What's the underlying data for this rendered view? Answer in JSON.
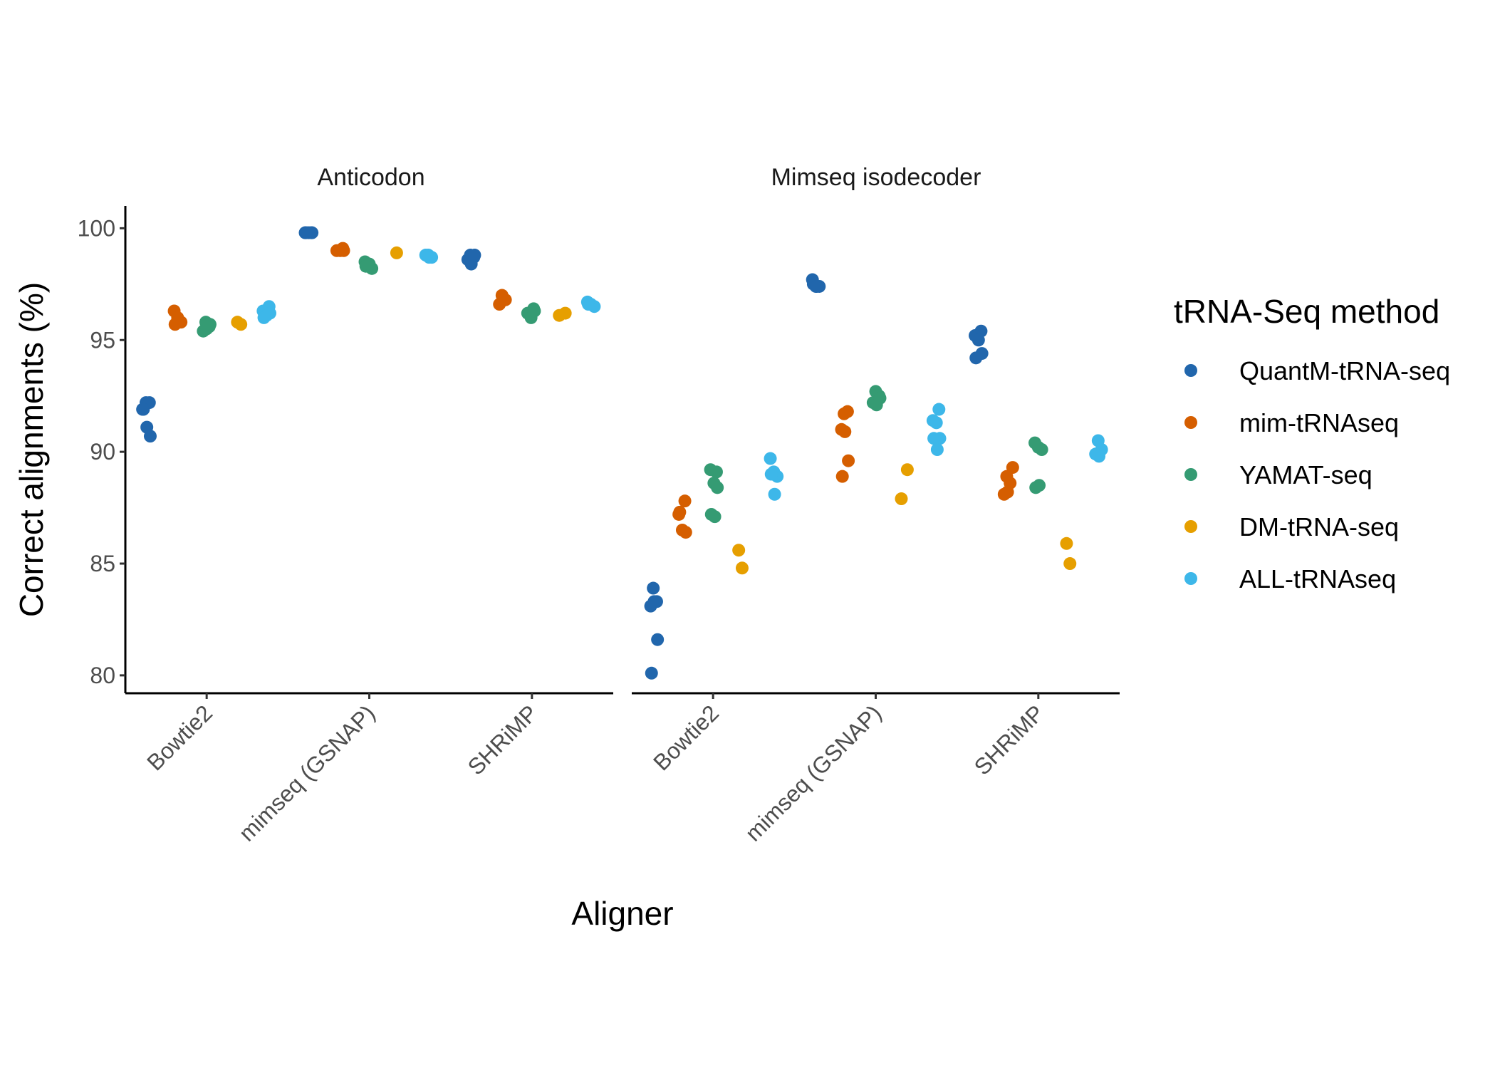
{
  "chart_data": {
    "type": "scatter",
    "xlabel": "Aligner",
    "ylabel": "Correct alignments (%)",
    "ylim": [
      79.2,
      101
    ],
    "yticks": [
      80,
      85,
      90,
      95,
      100
    ],
    "categories": [
      "Bowtie2",
      "mimseq (GSNAP)",
      "SHRiMP"
    ],
    "legend": {
      "title": "tRNA-Seq method",
      "placement": "right"
    },
    "series": [
      {
        "name": "QuantM-tRNA-seq",
        "color": "#2166ac"
      },
      {
        "name": "mim-tRNAseq",
        "color": "#d55e00"
      },
      {
        "name": "YAMAT-seq",
        "color": "#359b73"
      },
      {
        "name": "DM-tRNA-seq",
        "color": "#e69f00"
      },
      {
        "name": "ALL-tRNAseq",
        "color": "#3db7e9"
      }
    ],
    "panels": [
      {
        "title": "Anticodon",
        "points": {
          "Bowtie2": [
            [
              91.9,
              92.2,
              92.2,
              91.9,
              91.1,
              90.7
            ],
            [
              96.3,
              96.0,
              95.8,
              95.7,
              95.8
            ],
            [
              95.8,
              95.6,
              95.4,
              95.5,
              95.7
            ],
            [
              95.8,
              95.7
            ],
            [
              96.5,
              96.3,
              96.1,
              96.2,
              96.0
            ]
          ],
          "mimseq (GSNAP)": [
            [
              99.8,
              99.8,
              99.8,
              99.8,
              99.8
            ],
            [
              99.1,
              99.0,
              99.0,
              99.0
            ],
            [
              98.5,
              98.3,
              98.2,
              98.3,
              98.4
            ],
            [
              98.9
            ],
            [
              98.8,
              98.7,
              98.8,
              98.7
            ]
          ],
          "SHRiMP": [
            [
              98.8,
              98.7,
              98.6,
              98.4,
              98.8
            ],
            [
              97.0,
              96.8,
              96.6,
              96.9
            ],
            [
              96.4,
              96.2,
              96.0,
              96.3
            ],
            [
              96.2,
              96.1
            ],
            [
              96.7,
              96.6,
              96.5,
              96.6
            ]
          ]
        }
      },
      {
        "title": "Mimseq isodecoder",
        "points": {
          "Bowtie2": [
            [
              83.9,
              83.3,
              83.1,
              83.3,
              81.6,
              80.1
            ],
            [
              87.8,
              87.2,
              86.5,
              86.4,
              87.3
            ],
            [
              89.1,
              89.2,
              88.6,
              88.4,
              87.2,
              87.1
            ],
            [
              85.6,
              84.8
            ],
            [
              89.7,
              89.1,
              88.9,
              89.0,
              88.1
            ]
          ],
          "mimseq (GSNAP)": [
            [
              97.7,
              97.4,
              97.4,
              97.5,
              97.4
            ],
            [
              91.7,
              91.8,
              91.0,
              90.9,
              89.6,
              88.9
            ],
            [
              92.7,
              92.5,
              92.2,
              92.1,
              92.4
            ],
            [
              89.2,
              87.9
            ],
            [
              91.9,
              91.4,
              91.3,
              90.6,
              90.6,
              90.1
            ]
          ],
          "SHRiMP": [
            [
              95.4,
              95.2,
              95.0,
              94.4,
              94.2
            ],
            [
              89.3,
              88.9,
              88.6,
              88.1,
              88.2
            ],
            [
              90.4,
              90.2,
              90.1,
              88.4,
              88.5
            ],
            [
              85.9,
              85.0
            ],
            [
              90.5,
              90.1,
              89.9,
              89.8
            ]
          ]
        }
      }
    ]
  }
}
